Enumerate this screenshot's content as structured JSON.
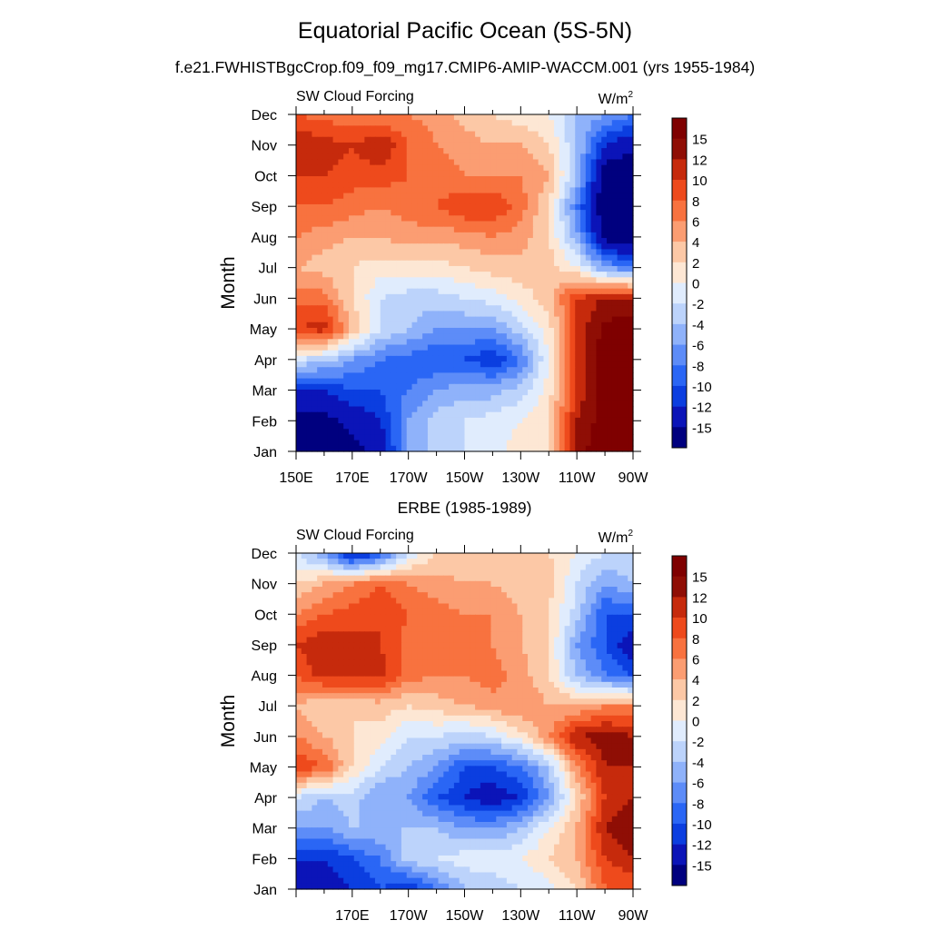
{
  "figure": {
    "title": "Equatorial Pacific Ocean (5S-5N)",
    "subtitle": "f.e21.FWHISTBgcCrop.f09_f09_mg17.CMIP6-AMIP-WACCM.001 (yrs 1955-1984)"
  },
  "chart_data": [
    {
      "type": "heatmap",
      "panel_title": "",
      "left_label": "SW Cloud Forcing",
      "units_base": "W/m",
      "units_sup": "2",
      "ylabel": "Month",
      "xlabel": "",
      "x_ticks": [
        "150E",
        "170E",
        "170W",
        "150W",
        "130W",
        "110W",
        "90W"
      ],
      "x_values": [
        150,
        170,
        190,
        210,
        230,
        250,
        270
      ],
      "xlim": [
        150,
        270
      ],
      "y_ticks": [
        "Jan",
        "Feb",
        "Mar",
        "Apr",
        "May",
        "Jun",
        "Jul",
        "Aug",
        "Sep",
        "Oct",
        "Nov",
        "Dec"
      ],
      "colorbar_levels": [
        -15,
        -12,
        -10,
        -8,
        -6,
        -4,
        -2,
        0,
        2,
        4,
        6,
        8,
        10,
        12,
        15
      ],
      "colorbar_labels": [
        "15",
        "12",
        "10",
        "8",
        "6",
        "4",
        "2",
        "0",
        "-2",
        "-4",
        "-6",
        "-8",
        "-10",
        "-12",
        "-15"
      ],
      "z_grid_x": [
        150,
        160,
        170,
        180,
        190,
        200,
        210,
        220,
        230,
        240,
        250,
        260,
        270
      ],
      "z": [
        [
          -18,
          -18,
          -16,
          -14,
          -6,
          -3,
          -2,
          -1,
          1,
          2,
          14,
          17,
          18
        ],
        [
          -16,
          -16,
          -14,
          -12,
          -6,
          -3,
          -2,
          -1,
          0,
          2,
          12,
          17,
          18
        ],
        [
          -13,
          -12,
          -10,
          -10,
          -8,
          -6,
          -5,
          -5,
          -3,
          1,
          10,
          17,
          18
        ],
        [
          -2,
          -3,
          -6,
          -8,
          -9,
          -10,
          -10,
          -12,
          -8,
          0,
          10,
          17,
          18
        ],
        [
          10,
          11,
          4,
          -2,
          -4,
          -6,
          -6,
          -6,
          -3,
          1,
          10,
          16,
          17
        ],
        [
          7,
          7,
          2,
          -2,
          -3,
          -3,
          -2,
          -1,
          1,
          3,
          10,
          12,
          12
        ],
        [
          4,
          3,
          2,
          1,
          1,
          1,
          2,
          3,
          3,
          3,
          0,
          -6,
          -8
        ],
        [
          6,
          5,
          4,
          4,
          5,
          5,
          5,
          6,
          5,
          2,
          -5,
          -16,
          -18
        ],
        [
          8,
          8,
          7,
          6,
          7,
          8,
          10,
          10,
          7,
          2,
          -8,
          -18,
          -18
        ],
        [
          10,
          10,
          9,
          9,
          8,
          7,
          6,
          6,
          6,
          4,
          -4,
          -17,
          -18
        ],
        [
          12,
          11,
          10,
          12,
          8,
          6,
          5,
          4,
          4,
          2,
          -4,
          -12,
          -14
        ],
        [
          8,
          7,
          7,
          6,
          6,
          5,
          3,
          2,
          1,
          0,
          -4,
          -6,
          -8
        ]
      ]
    },
    {
      "type": "heatmap",
      "panel_title": "ERBE (1985-1989)",
      "left_label": "SW Cloud Forcing",
      "units_base": "W/m",
      "units_sup": "2",
      "ylabel": "Month",
      "xlabel": "",
      "x_ticks": [
        "170E",
        "170W",
        "150W",
        "130W",
        "110W",
        "90W"
      ],
      "x_values": [
        170,
        190,
        210,
        230,
        250,
        270
      ],
      "xlim": [
        150,
        270
      ],
      "y_ticks": [
        "Jan",
        "Feb",
        "Mar",
        "Apr",
        "May",
        "Jun",
        "Jul",
        "Aug",
        "Sep",
        "Oct",
        "Nov",
        "Dec"
      ],
      "colorbar_levels": [
        -15,
        -12,
        -10,
        -8,
        -6,
        -4,
        -2,
        0,
        2,
        4,
        6,
        8,
        10,
        12,
        15
      ],
      "colorbar_labels": [
        "15",
        "12",
        "10",
        "8",
        "6",
        "4",
        "2",
        "0",
        "-2",
        "-4",
        "-6",
        "-8",
        "-10",
        "-12",
        "-15"
      ],
      "z_grid_x": [
        150,
        160,
        170,
        180,
        190,
        200,
        210,
        220,
        230,
        240,
        250,
        260,
        270
      ],
      "z": [
        [
          -14,
          -14,
          -12,
          -10,
          -12,
          -8,
          -4,
          -3,
          -2,
          -1,
          2,
          8,
          8
        ],
        [
          -12,
          -12,
          -10,
          -8,
          -3,
          -2,
          -1,
          -1,
          0,
          2,
          4,
          10,
          12
        ],
        [
          -6,
          -6,
          -4,
          -4,
          -4,
          -4,
          -6,
          -6,
          -4,
          0,
          4,
          12,
          14
        ],
        [
          -2,
          -4,
          -3,
          -6,
          -6,
          -10,
          -12,
          -14,
          -12,
          -6,
          2,
          10,
          12
        ],
        [
          10,
          8,
          2,
          -2,
          -4,
          -6,
          -10,
          -10,
          -8,
          -4,
          6,
          12,
          12
        ],
        [
          6,
          4,
          2,
          1,
          -2,
          -2,
          -3,
          -2,
          1,
          6,
          12,
          13,
          12
        ],
        [
          4,
          2,
          2,
          3,
          2,
          3,
          4,
          5,
          6,
          4,
          4,
          6,
          6
        ],
        [
          8,
          11,
          11,
          11,
          7,
          6,
          6,
          7,
          5,
          2,
          -4,
          -8,
          -10
        ],
        [
          10,
          12,
          11,
          10,
          7,
          6,
          6,
          6,
          4,
          2,
          -6,
          -10,
          -14
        ],
        [
          6,
          8,
          9,
          10,
          8,
          7,
          6,
          6,
          4,
          2,
          -3,
          -10,
          -10
        ],
        [
          2,
          4,
          6,
          8,
          6,
          5,
          4,
          4,
          3,
          3,
          -2,
          -6,
          -4
        ],
        [
          -2,
          -6,
          -14,
          -10,
          -2,
          2,
          2,
          2,
          3,
          2,
          0,
          -2,
          -2
        ]
      ]
    }
  ],
  "palette": {
    "bins": [
      "#00007f",
      "#0b14b8",
      "#0b3ee0",
      "#2a66f5",
      "#5d8cf8",
      "#8fb2fa",
      "#bcd3fb",
      "#e0ecfd",
      "#fde7d4",
      "#fcc8a6",
      "#fb9d72",
      "#f8723f",
      "#ee4a1c",
      "#c62a0c",
      "#8f0e05",
      "#7f0000"
    ]
  }
}
